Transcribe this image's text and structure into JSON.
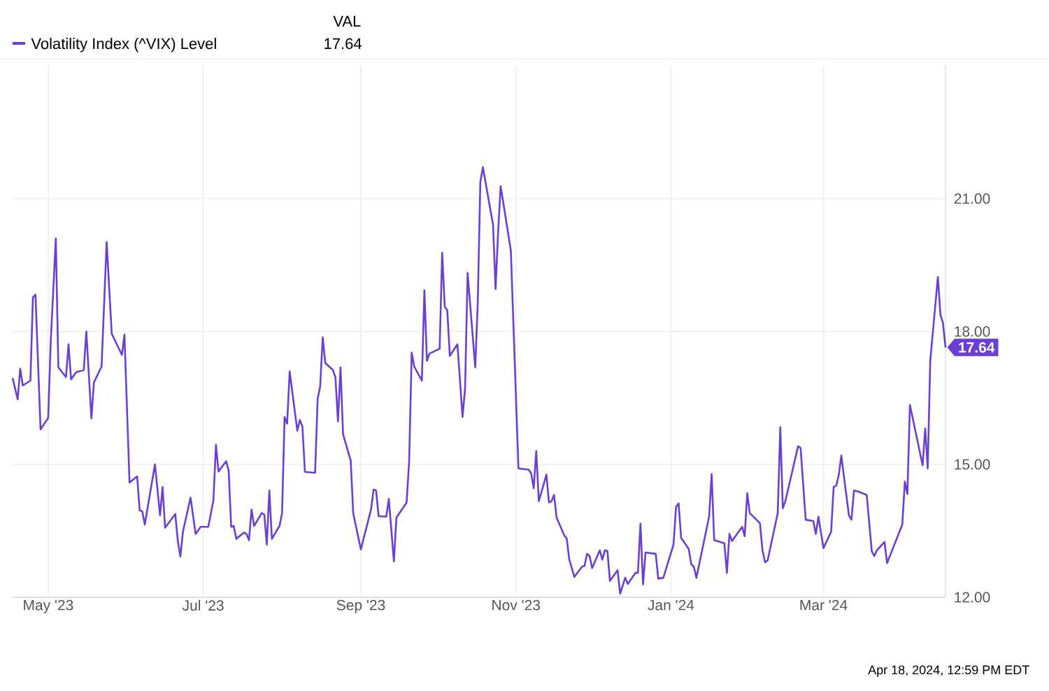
{
  "chart_data": {
    "type": "line",
    "x": [
      "2023-04-17",
      "2023-04-19",
      "2023-04-20",
      "2023-04-21",
      "2023-04-24",
      "2023-04-25",
      "2023-04-26",
      "2023-04-28",
      "2023-05-01",
      "2023-05-02",
      "2023-05-04",
      "2023-05-05",
      "2023-05-08",
      "2023-05-09",
      "2023-05-10",
      "2023-05-12",
      "2023-05-15",
      "2023-05-16",
      "2023-05-18",
      "2023-05-19",
      "2023-05-22",
      "2023-05-24",
      "2023-05-26",
      "2023-05-30",
      "2023-05-31",
      "2023-06-02",
      "2023-06-05",
      "2023-06-06",
      "2023-06-07",
      "2023-06-08",
      "2023-06-12",
      "2023-06-14",
      "2023-06-15",
      "2023-06-16",
      "2023-06-20",
      "2023-06-21",
      "2023-06-22",
      "2023-06-23",
      "2023-06-26",
      "2023-06-28",
      "2023-06-30",
      "2023-07-03",
      "2023-07-05",
      "2023-07-06",
      "2023-07-07",
      "2023-07-10",
      "2023-07-11",
      "2023-07-12",
      "2023-07-13",
      "2023-07-14",
      "2023-07-17",
      "2023-07-18",
      "2023-07-19",
      "2023-07-20",
      "2023-07-21",
      "2023-07-24",
      "2023-07-25",
      "2023-07-26",
      "2023-07-27",
      "2023-07-28",
      "2023-07-31",
      "2023-08-01",
      "2023-08-02",
      "2023-08-03",
      "2023-08-04",
      "2023-08-07",
      "2023-08-08",
      "2023-08-09",
      "2023-08-10",
      "2023-08-14",
      "2023-08-15",
      "2023-08-16",
      "2023-08-17",
      "2023-08-18",
      "2023-08-21",
      "2023-08-22",
      "2023-08-23",
      "2023-08-24",
      "2023-08-25",
      "2023-08-28",
      "2023-08-29",
      "2023-09-01",
      "2023-09-05",
      "2023-09-06",
      "2023-09-07",
      "2023-09-08",
      "2023-09-11",
      "2023-09-12",
      "2023-09-14",
      "2023-09-15",
      "2023-09-19",
      "2023-09-20",
      "2023-09-21",
      "2023-09-22",
      "2023-09-25",
      "2023-09-26",
      "2023-09-27",
      "2023-09-28",
      "2023-10-02",
      "2023-10-03",
      "2023-10-04",
      "2023-10-05",
      "2023-10-06",
      "2023-10-09",
      "2023-10-11",
      "2023-10-12",
      "2023-10-13",
      "2023-10-16",
      "2023-10-17",
      "2023-10-18",
      "2023-10-19",
      "2023-10-23",
      "2023-10-24",
      "2023-10-25",
      "2023-10-26",
      "2023-10-30",
      "2023-11-02",
      "2023-11-06",
      "2023-11-07",
      "2023-11-08",
      "2023-11-09",
      "2023-11-10",
      "2023-11-13",
      "2023-11-14",
      "2023-11-15",
      "2023-11-16",
      "2023-11-17",
      "2023-11-20",
      "2023-11-21",
      "2023-11-22",
      "2023-11-24",
      "2023-11-27",
      "2023-11-28",
      "2023-11-29",
      "2023-11-30",
      "2023-12-01",
      "2023-12-04",
      "2023-12-05",
      "2023-12-06",
      "2023-12-07",
      "2023-12-08",
      "2023-12-11",
      "2023-12-12",
      "2023-12-14",
      "2023-12-15",
      "2023-12-18",
      "2023-12-19",
      "2023-12-20",
      "2023-12-21",
      "2023-12-22",
      "2023-12-26",
      "2023-12-27",
      "2023-12-29",
      "2024-01-02",
      "2024-01-03",
      "2024-01-04",
      "2024-01-05",
      "2024-01-08",
      "2024-01-09",
      "2024-01-10",
      "2024-01-11",
      "2024-01-16",
      "2024-01-17",
      "2024-01-18",
      "2024-01-22",
      "2024-01-23",
      "2024-01-24",
      "2024-01-25",
      "2024-01-29",
      "2024-01-30",
      "2024-01-31",
      "2024-02-01",
      "2024-02-05",
      "2024-02-06",
      "2024-02-07",
      "2024-02-08",
      "2024-02-12",
      "2024-02-13",
      "2024-02-14",
      "2024-02-15",
      "2024-02-20",
      "2024-02-21",
      "2024-02-23",
      "2024-02-26",
      "2024-02-27",
      "2024-02-28",
      "2024-03-01",
      "2024-03-04",
      "2024-03-05",
      "2024-03-06",
      "2024-03-07",
      "2024-03-08",
      "2024-03-11",
      "2024-03-12",
      "2024-03-13",
      "2024-03-15",
      "2024-03-18",
      "2024-03-20",
      "2024-03-21",
      "2024-03-22",
      "2024-03-25",
      "2024-03-26",
      "2024-04-01",
      "2024-04-02",
      "2024-04-03",
      "2024-04-04",
      "2024-04-09",
      "2024-04-10",
      "2024-04-11",
      "2024-04-12",
      "2024-04-15",
      "2024-04-16",
      "2024-04-17",
      "2024-04-18"
    ],
    "series": [
      {
        "name": "Volatility Index (^VIX) Level",
        "color": "#6b3fd4",
        "values": [
          16.95,
          16.47,
          17.16,
          16.78,
          16.89,
          18.77,
          18.83,
          15.79,
          16.05,
          17.77,
          20.1,
          17.19,
          16.97,
          17.71,
          16.92,
          17.08,
          17.13,
          18.0,
          16.04,
          16.85,
          17.21,
          20.02,
          17.95,
          17.47,
          17.93,
          14.59,
          14.73,
          13.96,
          13.94,
          13.64,
          15.0,
          13.85,
          14.49,
          13.57,
          13.88,
          13.27,
          12.92,
          13.48,
          14.25,
          13.43,
          13.59,
          13.59,
          14.19,
          15.44,
          14.84,
          15.07,
          14.86,
          13.59,
          13.61,
          13.32,
          13.46,
          13.43,
          13.29,
          13.98,
          13.61,
          13.9,
          13.87,
          13.19,
          14.41,
          13.32,
          13.61,
          13.9,
          16.07,
          15.92,
          17.1,
          15.76,
          16.0,
          15.86,
          14.83,
          14.81,
          16.48,
          16.76,
          17.87,
          17.29,
          17.13,
          16.97,
          15.97,
          17.19,
          15.68,
          15.09,
          13.9,
          13.08,
          13.98,
          14.43,
          14.41,
          13.83,
          13.82,
          14.22,
          12.81,
          13.8,
          14.14,
          15.07,
          17.52,
          17.21,
          16.89,
          18.93,
          17.34,
          17.5,
          17.61,
          19.78,
          18.56,
          18.48,
          17.45,
          17.71,
          16.07,
          16.71,
          19.32,
          17.19,
          18.67,
          21.37,
          21.71,
          20.41,
          18.96,
          20.25,
          21.28,
          19.83,
          14.91,
          14.88,
          14.8,
          14.46,
          15.3,
          14.17,
          14.77,
          14.14,
          14.17,
          14.31,
          13.8,
          13.4,
          13.32,
          12.85,
          12.46,
          12.69,
          12.71,
          12.98,
          12.93,
          12.66,
          13.06,
          12.85,
          13.06,
          13.04,
          12.37,
          12.61,
          12.08,
          12.44,
          12.3,
          12.55,
          12.55,
          13.66,
          12.29,
          13.01,
          12.98,
          12.42,
          12.44,
          13.19,
          14.04,
          14.12,
          13.34,
          13.09,
          12.74,
          12.69,
          12.44,
          13.82,
          14.78,
          13.29,
          13.22,
          12.55,
          13.43,
          13.27,
          13.59,
          13.38,
          14.35,
          13.9,
          13.67,
          13.06,
          12.79,
          12.83,
          13.9,
          15.84,
          14.01,
          14.17,
          15.41,
          15.37,
          13.75,
          13.72,
          13.43,
          13.82,
          13.11,
          13.48,
          14.49,
          14.52,
          14.75,
          15.2,
          13.85,
          13.75,
          14.41,
          14.38,
          14.31,
          13.04,
          12.93,
          13.06,
          13.25,
          12.77,
          13.64,
          14.61,
          14.33,
          16.34,
          14.98,
          15.81,
          14.91,
          17.34,
          19.23,
          18.38,
          18.19,
          17.64
        ],
        "value_labels": [
          null,
          null,
          null,
          null,
          null,
          null,
          null,
          null,
          null,
          null,
          null,
          null,
          null,
          null,
          null,
          null,
          null,
          null,
          null,
          null,
          null,
          null,
          null,
          null,
          null,
          null,
          null,
          null,
          null,
          null,
          null,
          null,
          null,
          null,
          null,
          null,
          null,
          null,
          null,
          null,
          null,
          null,
          null,
          null,
          null,
          null,
          null,
          null,
          null,
          null,
          null,
          null,
          null,
          null,
          null,
          null,
          null,
          null,
          null,
          null,
          null,
          null,
          null,
          null,
          null,
          null,
          null,
          null,
          null,
          null,
          null,
          null,
          null,
          null,
          null,
          null,
          null,
          null,
          null,
          null,
          null,
          null,
          null,
          null,
          null,
          null,
          null,
          null,
          null,
          null,
          null,
          null,
          null,
          null,
          null,
          null,
          null,
          null,
          null,
          null,
          null,
          null,
          null,
          null,
          null,
          null,
          null,
          null,
          null,
          null,
          null,
          null,
          null,
          null,
          null,
          null,
          null,
          null,
          null,
          null,
          null,
          null,
          null,
          null,
          null,
          null,
          null,
          null,
          null,
          null,
          null,
          null,
          null,
          null,
          null,
          null,
          null,
          null,
          null,
          null,
          null,
          null,
          null,
          null,
          null,
          null,
          null,
          null,
          null,
          null,
          null,
          null,
          null,
          null,
          null,
          null,
          null,
          null,
          null,
          null,
          null,
          null,
          null,
          null,
          null,
          null,
          null,
          null,
          null,
          null,
          null,
          null,
          null,
          null,
          null,
          null,
          null,
          null,
          null,
          null,
          null,
          null,
          null,
          null,
          null,
          null,
          null,
          null,
          null,
          null,
          null,
          null,
          null,
          null,
          null,
          null,
          null,
          null,
          null,
          null,
          null,
          null,
          null,
          null,
          null,
          null,
          null,
          null,
          null,
          null,
          null,
          null,
          null,
          "17.64"
        ]
      }
    ],
    "legend_title": "VAL",
    "legend": "top left",
    "xlim": [
      "2023-04-17",
      "2024-04-18"
    ],
    "xticks": [
      {
        "value": "2023-05-01",
        "label": "May '23"
      },
      {
        "value": "2023-07-01",
        "label": "Jul '23"
      },
      {
        "value": "2023-09-01",
        "label": "Sep '23"
      },
      {
        "value": "2023-11-01",
        "label": "Nov '23"
      },
      {
        "value": "2024-01-01",
        "label": "Jan '24"
      },
      {
        "value": "2024-03-01",
        "label": "Mar '24"
      }
    ],
    "ylim": [
      12,
      24
    ],
    "yticks": [
      {
        "value": 12,
        "label": "12.00"
      },
      {
        "value": 15,
        "label": "15.00"
      },
      {
        "value": 18,
        "label": "18.00"
      },
      {
        "value": 21,
        "label": "21.00"
      }
    ],
    "grid": true,
    "marker": "none",
    "line_style": "solid",
    "annotations": [
      "Apr 18, 2024, 12:59 PM EDT"
    ]
  }
}
